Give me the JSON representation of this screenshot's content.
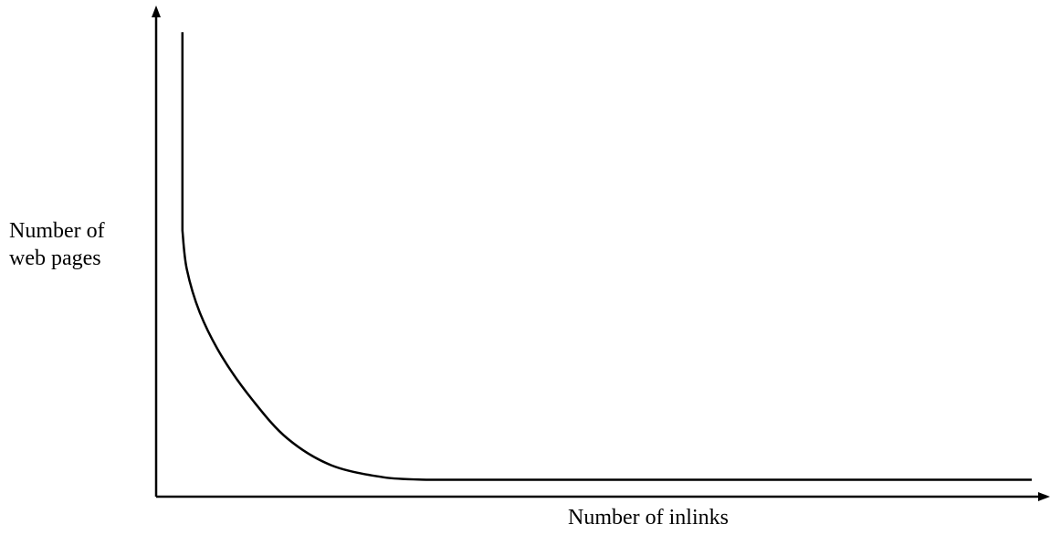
{
  "chart_data": {
    "type": "line",
    "title": "",
    "xlabel": "Number of inlinks",
    "ylabel_lines": [
      "Number of",
      "web pages"
    ],
    "grid": false,
    "legend": "none",
    "ticks": false,
    "line_color": "#000000",
    "axis_color": "#000000",
    "series": [
      {
        "points": [
          [
            0.03,
            0.96
          ],
          [
            0.03,
            0.55
          ],
          [
            0.035,
            0.47
          ],
          [
            0.05,
            0.38
          ],
          [
            0.075,
            0.29
          ],
          [
            0.11,
            0.2
          ],
          [
            0.15,
            0.12
          ],
          [
            0.2,
            0.065
          ],
          [
            0.26,
            0.04
          ],
          [
            0.31,
            0.035
          ],
          [
            1.0,
            0.035
          ]
        ]
      }
    ]
  }
}
